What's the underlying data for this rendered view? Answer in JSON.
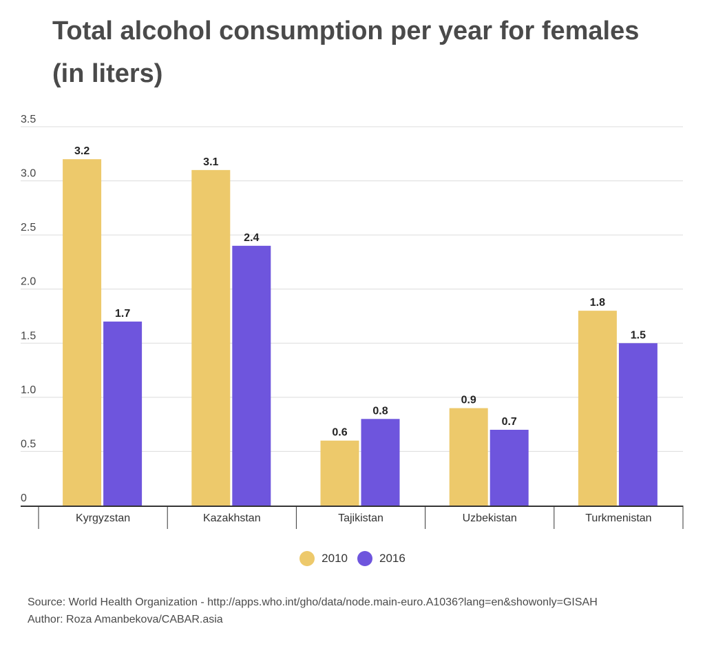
{
  "title": "Total alcohol consumption per year for females (in liters)",
  "legend": [
    {
      "label": "2010",
      "color": "#EDC96B"
    },
    {
      "label": "2016",
      "color": "#6E55DD"
    }
  ],
  "source_text": "Source: World Health Organization - http://apps.who.int/gho/data/node.main-euro.A1036?lang=en&showonly=GISAH",
  "author_text": "Author: Roza Amanbekova/CABAR.asia",
  "chart_data": {
    "type": "bar",
    "categories": [
      "Kyrgyzstan",
      "Kazakhstan",
      "Tajikistan",
      "Uzbekistan",
      "Turkmenistan"
    ],
    "series": [
      {
        "name": "2010",
        "values": [
          3.2,
          3.1,
          0.6,
          0.9,
          1.8
        ],
        "color": "#EDC96B"
      },
      {
        "name": "2016",
        "values": [
          1.7,
          2.4,
          0.8,
          0.7,
          1.5
        ],
        "color": "#6E55DD"
      }
    ],
    "yticks": [
      "0",
      "0.5",
      "1.0",
      "1.5",
      "2.0",
      "2.5",
      "3.0",
      "3.5"
    ],
    "ylim": [
      0,
      3.5
    ],
    "xlabel": "",
    "ylabel": "",
    "grid": true,
    "data_labels": true,
    "legend_position": "bottom-center"
  }
}
